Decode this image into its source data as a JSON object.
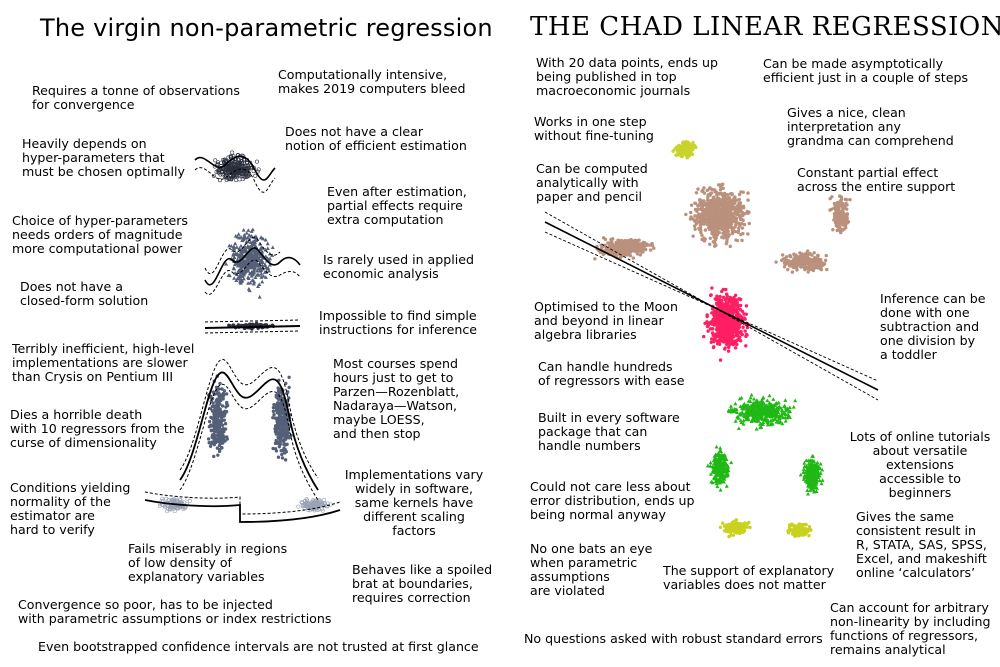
{
  "left": {
    "title": "The virgin non-parametric regression",
    "notes": [
      "Requires a tonne of observations\nfor convergence",
      "Computationally intensive,\nmakes 2019 computers bleed",
      "Heavily depends on\nhyper-parameters that\nmust be chosen optimally",
      "Does not have a clear\nnotion of efficient estimation",
      "Even after estimation,\npartial effects require\nextra computation",
      "Choice of hyper-parameters\nneeds orders of magnitude\nmore computational power",
      "Is rarely used in applied\neconomic analysis",
      "Does not have a\nclosed-form solution",
      "Impossible to find simple\ninstructions for inference",
      "Terribly inefficient, high-level\nimplementations are slower\nthan Crysis on Pentium III",
      "Most courses spend\nhours just to get to\nParzen—Rozenblatt,\nNadaraya—Watson,\nmaybe LOESS,\nand then stop",
      "Dies a horrible death\nwith 10 regressors from the\ncurse of dimensionality",
      "Conditions yielding\nnormality of the\nestimator are\nhard to verify",
      "Implementations vary\nwidely in software,\nsame kernels have\ndifferent scaling\nfactors",
      "Fails miserably in regions\nof low density of\nexplanatory variables",
      "Behaves like a spoiled\nbrat at boundaries,\nrequires correction",
      "Convergence so poor, has to be injected\nwith parametric assumptions or index restrictions",
      "Even bootstrapped confidence intervals are not trusted at first glance"
    ]
  },
  "right": {
    "title": "THE CHAD LINEAR REGRESSION",
    "notes": [
      "With 20 data points, ends up\nbeing published in top\nmacroeconomic journals",
      "Can be made asymptotically\nefficient just in a couple of steps",
      "Works in one step\nwithout fine-tuning",
      "Gives a nice, clean\ninterpretation any\ngrandma can comprehend",
      "Can be computed\nanalytically with\npaper and pencil",
      "Constant partial effect\nacross the entire support",
      "Inference can be\ndone with one\nsubtraction and\none division by\na toddler",
      "Optimised to the Moon\nand beyond in linear\nalgebra libraries",
      "Can handle hundreds\nof regressors with ease",
      "Built in every software\npackage that can\nhandle numbers",
      "Lots of online tutorials\nabout versatile\nextensions\naccessible to\nbeginners",
      "Could not care less about\nerror distribution, ends up\nbeing normal anyway",
      "Gives the same\nconsistent result in\nR, STATA, SAS, SPSS,\nExcel, and makeshift\nonline ‘calculators’",
      "No one bats an eye\nwhen parametric\nassumptions\nare violated",
      "The support of explanatory\nvariables does not matter",
      "Can account for arbitrary\nnon-linearity by including\nfunctions of regressors,\nremains analytical",
      "No questions asked with robust standard errors"
    ]
  },
  "colors": {
    "virgin_dark": "#2b2f3d",
    "virgin_mid": "#556078",
    "virgin_light": "#9aa3b5",
    "chad_head": "#c8d42a",
    "chad_body": "#b9917c",
    "chad_torso": "#ff1f63",
    "chad_legs": "#20b815",
    "chad_feet": "#c9d21c"
  }
}
